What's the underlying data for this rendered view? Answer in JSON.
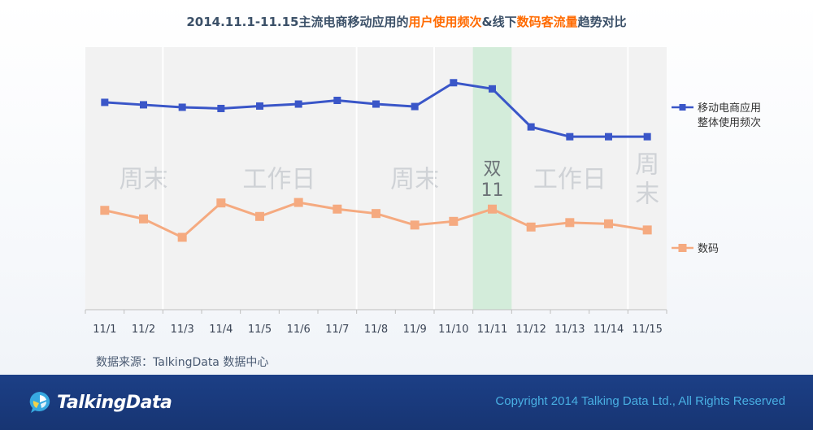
{
  "title": {
    "prefix": "2014.11.1-11.15主流电商移动应用的",
    "highlight1": "用户使用频次",
    "middle": "&线下",
    "highlight2": "数码客流量",
    "suffix": "趋势对比"
  },
  "chart_data": {
    "type": "line",
    "categories": [
      "11/1",
      "11/2",
      "11/3",
      "11/4",
      "11/5",
      "11/6",
      "11/7",
      "11/8",
      "11/9",
      "11/10",
      "11/11",
      "11/12",
      "11/13",
      "11/14",
      "11/15"
    ],
    "series": [
      {
        "name": "移动电商应用整体使用频次",
        "legend_lines": [
          "移动电商应用",
          "整体使用频次"
        ],
        "color": "#3a56c8",
        "values": [
          84.5,
          83.5,
          82.5,
          82,
          83,
          83.8,
          85.3,
          83.8,
          82.8,
          92.5,
          90,
          74.5,
          70.5,
          70.5,
          70.5
        ]
      },
      {
        "name": "数码",
        "legend_lines": [
          "数码"
        ],
        "color": "#f5aa80",
        "values": [
          40.5,
          37,
          29.5,
          43.5,
          38,
          43.7,
          41,
          39.2,
          34.5,
          36,
          41,
          33.7,
          35.5,
          35,
          32.5
        ]
      }
    ],
    "ylim": [
      0,
      107
    ],
    "bands": [
      {
        "label": "周末",
        "from": 0,
        "to": 2,
        "style": "plain"
      },
      {
        "label": "工作日",
        "from": 2,
        "to": 7,
        "style": "plain"
      },
      {
        "label": "周末",
        "from": 7,
        "to": 9,
        "style": "plain"
      },
      {
        "label": "双11",
        "label_lines": [
          "双",
          "11"
        ],
        "from": 10,
        "to": 10,
        "style": "green"
      },
      {
        "label": "工作日",
        "from": 11,
        "to": 13,
        "style": "plain"
      },
      {
        "label": "周末",
        "label_lines": [
          "周",
          "末"
        ],
        "from": 14,
        "to": 14,
        "style": "plain"
      }
    ]
  },
  "source": "数据来源：TalkingData 数据中心",
  "footer": {
    "logo_text": "TalkingData",
    "copyright": "Copyright 2014 Talking Data Ltd., All Rights Reserved"
  },
  "colors": {
    "accent": "#ff6a00",
    "footer_bg": "#1c3f86",
    "copyright": "#49b0e3"
  }
}
